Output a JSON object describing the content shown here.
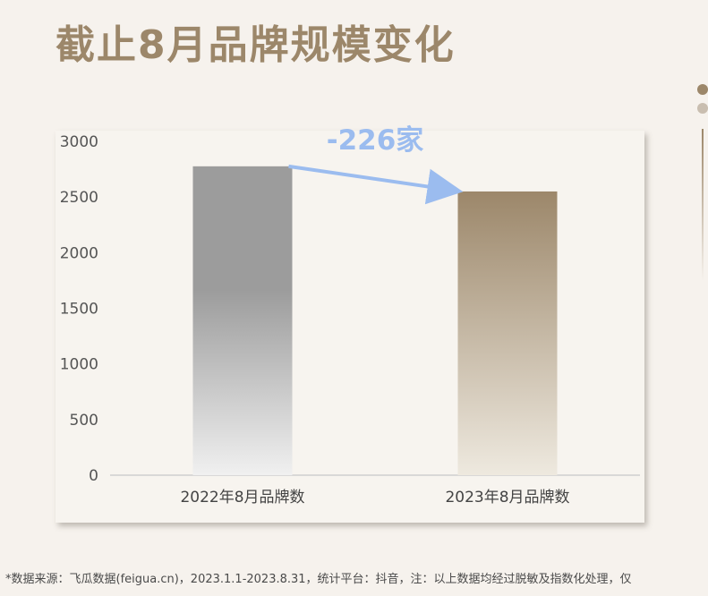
{
  "title": "截止8月品牌规模变化",
  "chart_data": {
    "type": "bar",
    "categories": [
      "2022年8月品牌数",
      "2023年8月品牌数"
    ],
    "values": [
      2776,
      2550
    ],
    "ylim": [
      0,
      3000
    ],
    "yticks": [
      0,
      500,
      1000,
      1500,
      2000,
      2500,
      3000
    ],
    "grid": false,
    "legend": "none",
    "annotation": {
      "text": "-226家",
      "from": "2022年8月品牌数",
      "to": "2023年8月品牌数",
      "color": "#9bbcef"
    },
    "colors": {
      "bar_2022": [
        "#9c9c9c",
        "#f0f0f0"
      ],
      "bar_2023": [
        "#9c876a",
        "#eee9df"
      ]
    }
  },
  "footer": "*数据来源：飞瓜数据(feigua.cn)，2023.1.1-2023.8.31，统计平台：抖音，注：以上数据均经过脱敏及指数化处理，仅"
}
